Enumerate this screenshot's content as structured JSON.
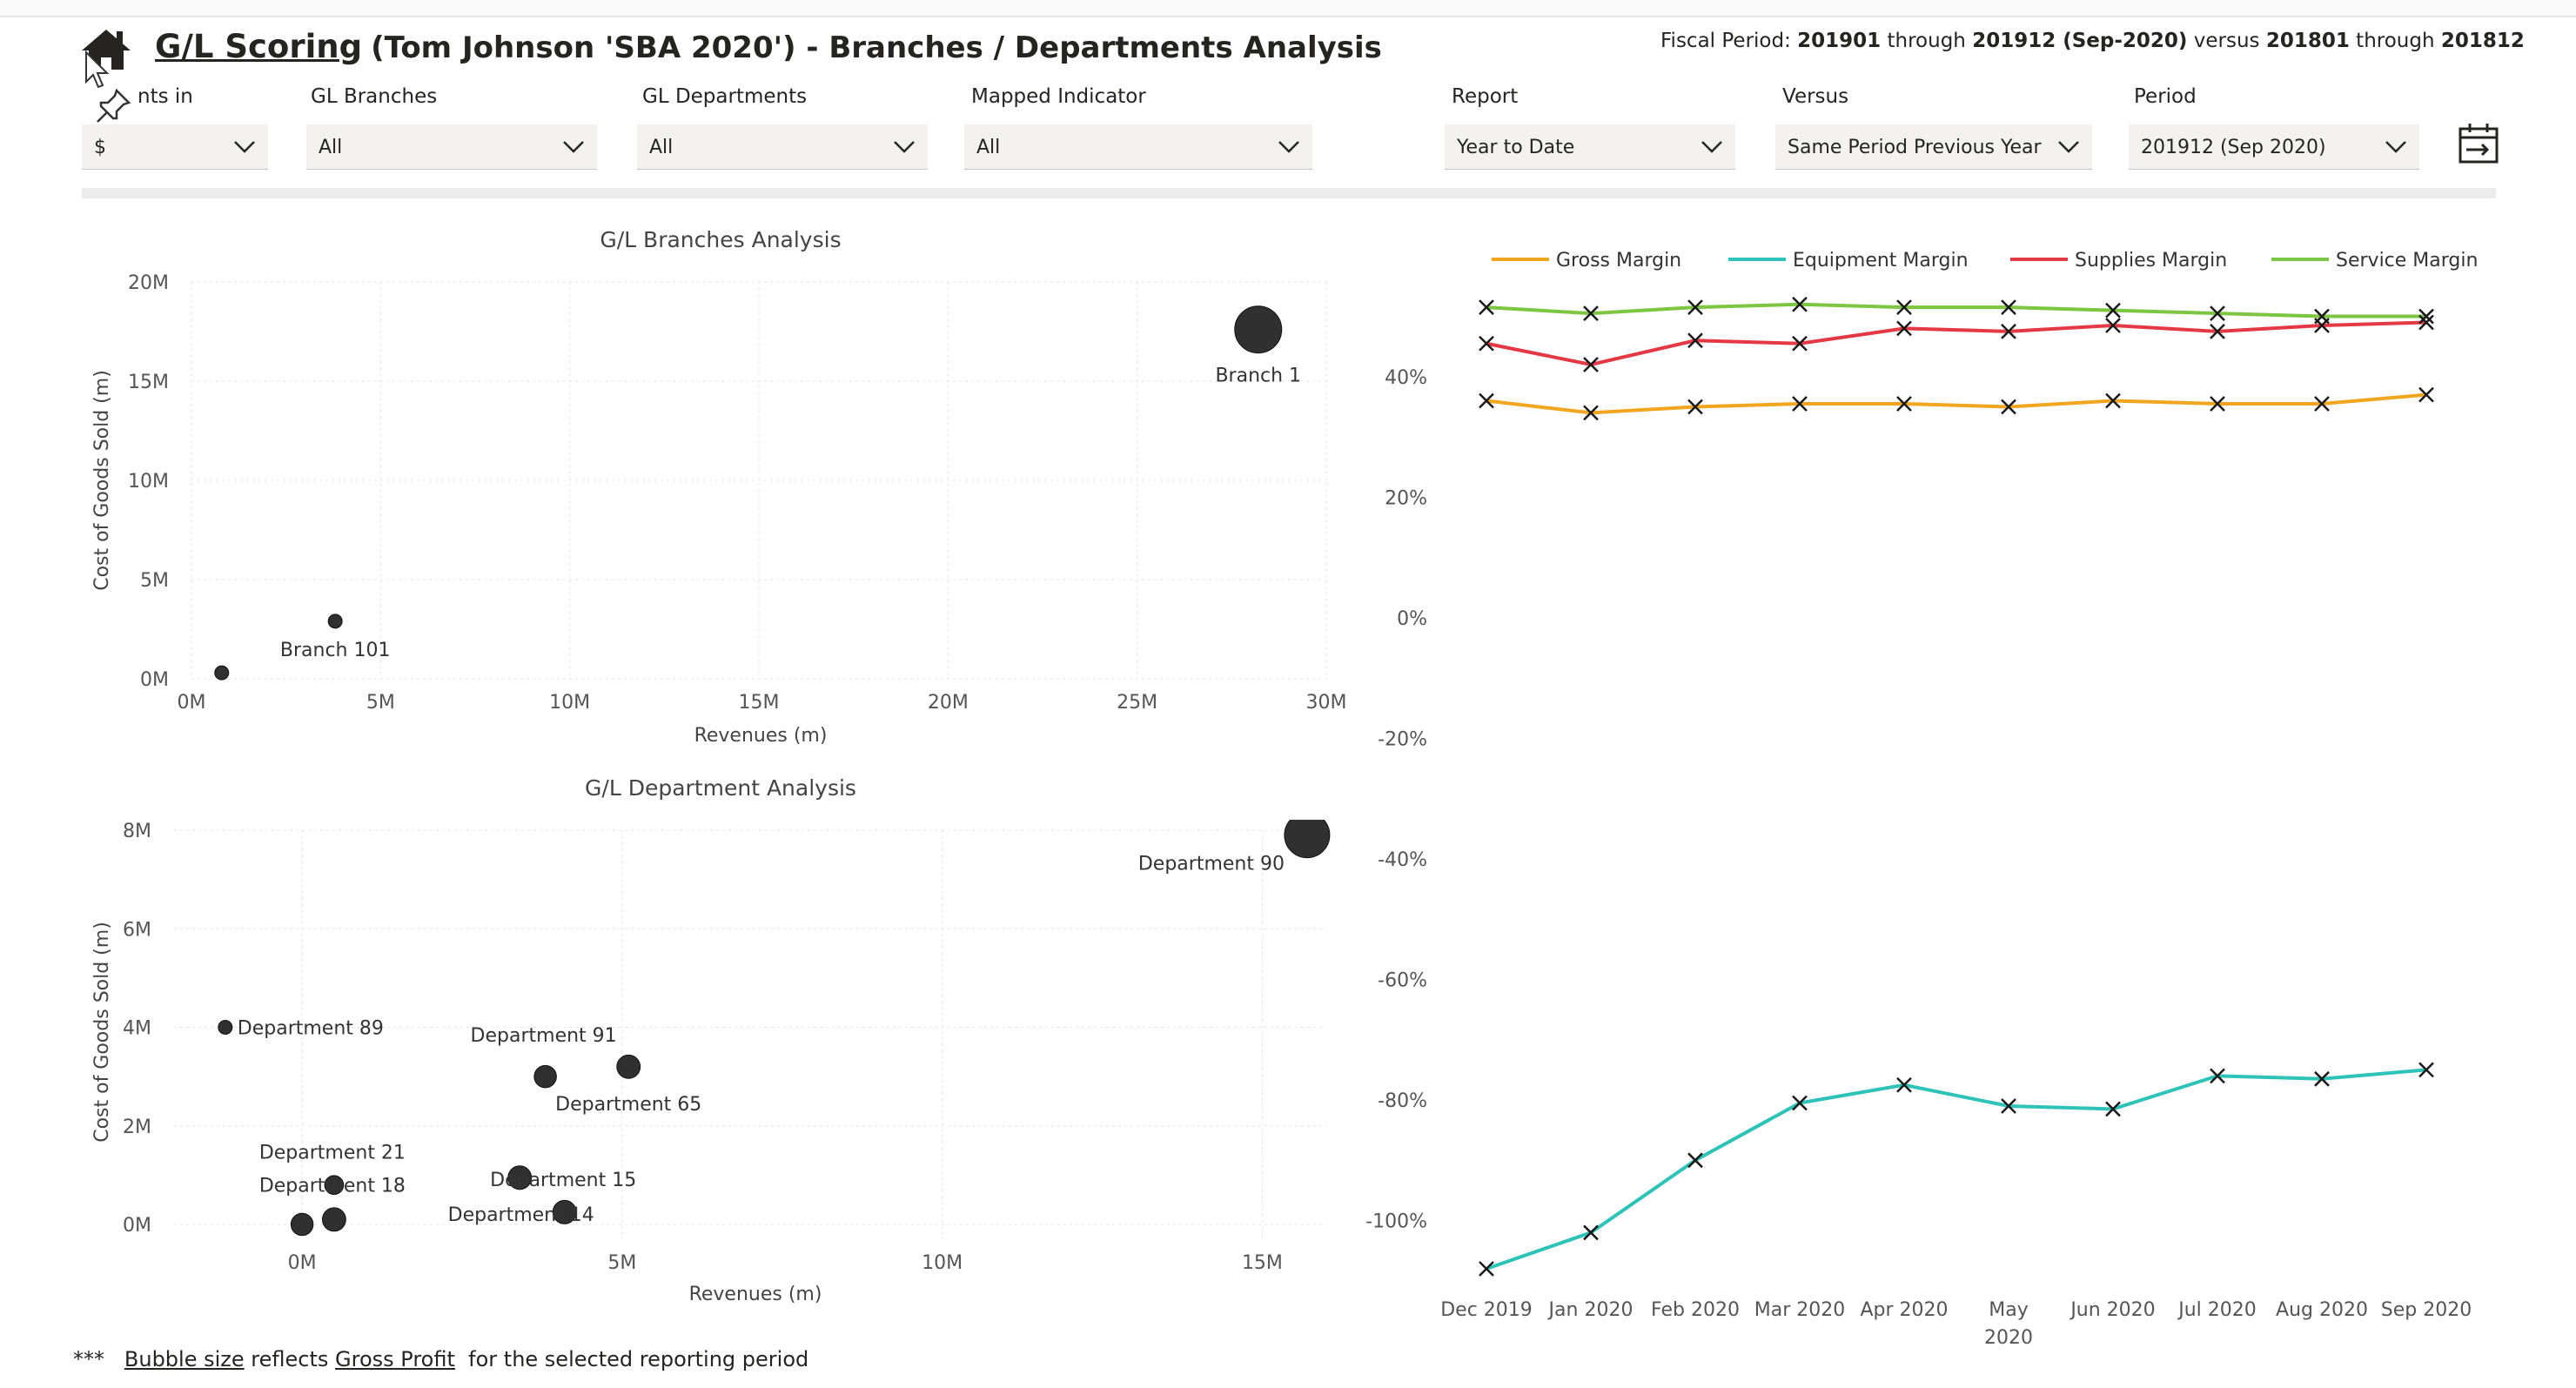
{
  "header": {
    "title_link": "G/L Scoring",
    "title_rest": "(Tom Johnson 'SBA 2020') - Branches / Departments Analysis",
    "fiscal": {
      "prefix": "Fiscal Period:",
      "from": "201901",
      "through_word": "through",
      "to": "201912 (Sep-2020)",
      "versus_word": "versus",
      "cmp_from": "201801",
      "through_word2": "through",
      "cmp_to": "201812"
    }
  },
  "slicers": [
    {
      "label": "nts in",
      "value": "$"
    },
    {
      "label": "GL Branches",
      "value": "All"
    },
    {
      "label": "GL Departments",
      "value": "All"
    },
    {
      "label": "Mapped Indicator",
      "value": "All"
    },
    {
      "label": "Report",
      "value": "Year to Date"
    },
    {
      "label": "Versus",
      "value": "Same Period Previous Year"
    },
    {
      "label": "Period",
      "value": "201912 (Sep 2020)"
    }
  ],
  "icons": {
    "home": "home-icon",
    "cursor": "cursor-icon",
    "pin": "pin-icon",
    "export": "export-icon",
    "chevron": "chevron-down-icon"
  },
  "colors": {
    "gross": "#F2A51F",
    "equipment": "#2EC3B8",
    "supplies": "#E53845",
    "service": "#7DC642",
    "bubble": "#252525",
    "marker": "#1a1a1a"
  },
  "footnote": {
    "stars": "***",
    "bubble_size": "Bubble size",
    "reflects": "reflects",
    "gross_profit": "Gross Profit",
    "rest": "for the selected reporting period"
  },
  "chart_data": [
    {
      "type": "scatter",
      "title": "G/L Branches Analysis",
      "xlabel": "Revenues (m)",
      "ylabel": "Cost of Goods Sold (m)",
      "xlim": [
        0,
        30
      ],
      "ylim": [
        0,
        20
      ],
      "x_ticks": [
        "0M",
        "5M",
        "10M",
        "15M",
        "20M",
        "25M",
        "30M"
      ],
      "y_ticks": [
        "0M",
        "5M",
        "10M",
        "15M",
        "20M"
      ],
      "grid": true,
      "points": [
        {
          "label": "Branch 1",
          "x": 28.2,
          "y": 17.6,
          "size": 10.6
        },
        {
          "label": "Branch 101",
          "x": 3.8,
          "y": 2.9,
          "size": 0.9
        },
        {
          "label": "",
          "x": 0.8,
          "y": 0.3,
          "size": 0.5
        }
      ]
    },
    {
      "type": "scatter",
      "title": "G/L Department Analysis",
      "xlabel": "Revenues (m)",
      "ylabel": "Cost of Goods Sold (m)",
      "xlim": [
        -2,
        16
      ],
      "ylim": [
        -0.3,
        8
      ],
      "x_ticks": [
        "0M",
        "5M",
        "10M",
        "15M"
      ],
      "y_ticks": [
        "0M",
        "2M",
        "4M",
        "6M",
        "8M"
      ],
      "grid": true,
      "points": [
        {
          "label": "Department 90",
          "x": 15.7,
          "y": 7.9,
          "size": 7.5
        },
        {
          "label": "Department 89",
          "x": -1.2,
          "y": 4.0,
          "size": 0.5
        },
        {
          "label": "Department 91",
          "x": 3.8,
          "y": 3.0,
          "size": 1.8
        },
        {
          "label": "Department 65",
          "x": 5.1,
          "y": 3.2,
          "size": 2.0
        },
        {
          "label": "Department 21",
          "x": 0.5,
          "y": 0.8,
          "size": 1.3
        },
        {
          "label": "Department 18",
          "x": 0.5,
          "y": 0.1,
          "size": 2.0
        },
        {
          "label": "",
          "x": 0.0,
          "y": 0.0,
          "size": 1.8
        },
        {
          "label": "Department 15",
          "x": 3.4,
          "y": 0.95,
          "size": 2.0
        },
        {
          "label": "Department 14",
          "x": 4.1,
          "y": 0.25,
          "size": 2.0
        }
      ]
    },
    {
      "type": "line",
      "categories": [
        "Dec 2019",
        "Jan 2020",
        "Feb 2020",
        "Mar 2020",
        "Apr 2020",
        "May 2020",
        "Jun 2020",
        "Jul 2020",
        "Aug 2020",
        "Sep 2020"
      ],
      "y_ticks": [
        "40%",
        "20%",
        "0%",
        "-20%",
        "-40%",
        "-60%",
        "-80%",
        "-100%"
      ],
      "ylim": [
        -108,
        56
      ],
      "legend_position": "top-left",
      "grid": false,
      "series": [
        {
          "name": "Gross Margin",
          "color_key": "gross",
          "values": [
            36,
            34,
            35,
            35.5,
            35.5,
            35,
            36,
            35.5,
            35.5,
            37
          ]
        },
        {
          "name": "Equipment Margin",
          "color_key": "equipment",
          "values": [
            -108,
            -102,
            -90,
            -80.5,
            -77.5,
            -81,
            -81.5,
            -76,
            -76.5,
            -75
          ]
        },
        {
          "name": "Supplies Margin",
          "color_key": "supplies",
          "values": [
            45.5,
            42,
            46,
            45.5,
            48,
            47.5,
            48.5,
            47.5,
            48.5,
            49
          ]
        },
        {
          "name": "Service Margin",
          "color_key": "service",
          "values": [
            51.5,
            50.5,
            51.5,
            52,
            51.5,
            51.5,
            51,
            50.5,
            50,
            50
          ]
        }
      ]
    }
  ]
}
